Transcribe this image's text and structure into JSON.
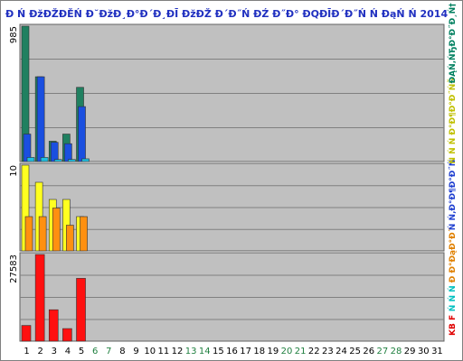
{
  "title": "Đ Ń ĐžĐŽĐĚŃ Đ˘ĐžĐ¸Đ°Đ´Đ¸ĐĪ ĐžĐŽ Đ´Đ˝Ń ĐŹ Đ˝Đ° ĐQĐĪĐ´Đ˝Ń Ń ĐąŃ Ń  2014",
  "right_legend": [
    {
      "text": "ĐĄŃ‚ŃЂĐ°Đ˝Đ¸Ń†",
      "color": "#008060"
    },
    {
      "text": "Ń Ń Ń Đ°Đ¶Đ°Đ˝ŃŠ",
      "color": "#c0c000"
    },
    {
      "text": "Ń Ń‚Đ°Đ¶Đ°Đ˝Ń",
      "color": "#2040d0"
    },
    {
      "text": "Đ Đ°ĐąĐ°Đ˝",
      "color": "#e08000"
    },
    {
      "text": "Ń Ń Ń",
      "color": "#00c0c0"
    },
    {
      "text": "KB F",
      "color": "#e00000"
    }
  ],
  "colors": {
    "bg": "#c0c0c0",
    "grid": "#808080",
    "green": "#208060",
    "blue": "#1a4fe0",
    "cyan": "#20c0e0",
    "yellow": "#ffff20",
    "orange": "#ff9010",
    "red": "#ff1010",
    "weekend": "#208040",
    "day": "#000000"
  },
  "chart_data": {
    "type": "bar",
    "days": [
      "1",
      "2",
      "3",
      "4",
      "5",
      "6",
      "7",
      "8",
      "9",
      "10",
      "11",
      "12",
      "13",
      "14",
      "15",
      "16",
      "17",
      "18",
      "19",
      "20",
      "21",
      "22",
      "23",
      "24",
      "25",
      "26",
      "27",
      "28",
      "29",
      "30",
      "31"
    ],
    "weekend_days": [
      "6",
      "7",
      "13",
      "14",
      "20",
      "21",
      "27",
      "28"
    ],
    "panels": [
      {
        "ymax_label": "985",
        "ymax": 985,
        "series": [
          {
            "key": "green",
            "values": [
              985,
              617,
              148,
              200,
              540
            ]
          },
          {
            "key": "blue",
            "values": [
              200,
              617,
              140,
              130,
              400
            ]
          },
          {
            "key": "cyan",
            "values": [
              30,
              30,
              15,
              15,
              20
            ]
          }
        ]
      },
      {
        "ymax_label": "10",
        "ymax": 10,
        "series": [
          {
            "key": "yellow",
            "values": [
              10,
              8,
              6,
              6,
              4
            ]
          },
          {
            "key": "orange",
            "values": [
              4,
              4,
              5,
              3,
              4
            ]
          }
        ]
      },
      {
        "ymax_label": "27583",
        "ymax": 27583,
        "series": [
          {
            "key": "red",
            "values": [
              5000,
              27583,
              10000,
              4000,
              20000
            ]
          }
        ]
      }
    ]
  }
}
